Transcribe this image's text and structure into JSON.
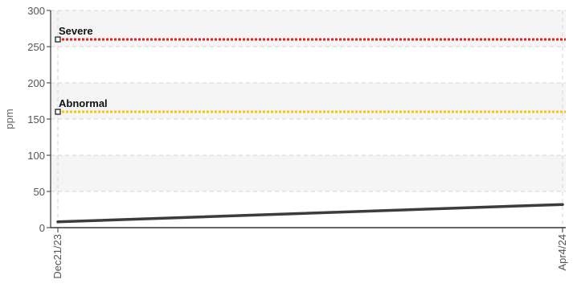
{
  "chart_data": {
    "type": "line",
    "title": "",
    "xlabel": "",
    "ylabel": "ppm",
    "ylim": [
      0,
      300
    ],
    "yticks": [
      0,
      50,
      100,
      150,
      200,
      250,
      300
    ],
    "xticks": [
      "Dec21/23",
      "Apr4/24"
    ],
    "grid": true,
    "series": [
      {
        "values": [
          {
            "x": "Dec21/23",
            "y": 8
          },
          {
            "x": "Apr4/24",
            "y": 32
          }
        ],
        "color": "#3c3c3c"
      }
    ],
    "thresholds": [
      {
        "label": "Severe",
        "y": 260,
        "color": "#e2211c"
      },
      {
        "label": "Abnormal",
        "y": 160,
        "color": "#f2c80f"
      }
    ]
  }
}
